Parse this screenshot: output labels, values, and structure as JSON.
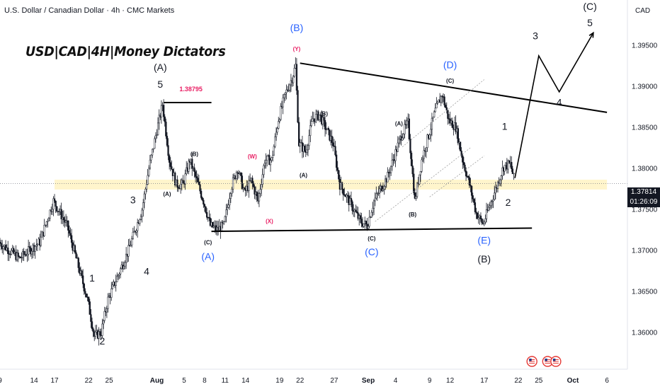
{
  "header": {
    "symbol_line": "U.S. Dollar / Canadian Dollar · 4h · CMC Markets",
    "currency": "CAD",
    "brand": "USD|CAD|4H|Money Dictators"
  },
  "price_box": {
    "price": "1.37814",
    "countdown": "01:26:09"
  },
  "colors": {
    "up_candle": "#131722",
    "down_candle": "#131722",
    "blue_label": "#2962ff",
    "red_label": "#e91e63",
    "zone": "#fff5cc",
    "trend_line": "#000000"
  },
  "chart_data": {
    "type": "candlestick",
    "y_axis": {
      "ticks": [
        "1.39500",
        "1.39000",
        "1.38500",
        "1.38000",
        "1.37500",
        "1.37000",
        "1.36500",
        "1.36000"
      ],
      "tick_values": [
        1.395,
        1.39,
        1.385,
        1.38,
        1.375,
        1.37,
        1.365,
        1.36
      ],
      "ylim": [
        1.3555,
        1.4005
      ]
    },
    "x_axis": {
      "ticks": [
        "9",
        "14",
        "17",
        "22",
        "25",
        "Aug",
        "5",
        "8",
        "11",
        "14",
        "19",
        "22",
        "27",
        "Sep",
        "4",
        "9",
        "12",
        "17",
        "22",
        "25",
        "Oct",
        "6"
      ],
      "tick_day": [
        9,
        14,
        17,
        22,
        25,
        32,
        36,
        39,
        42,
        45,
        50,
        53,
        58,
        63,
        67,
        72,
        75,
        80,
        85,
        88,
        93,
        98
      ],
      "range_day": [
        9,
        101
      ]
    },
    "path": [
      [
        9,
        1.371
      ],
      [
        12,
        1.369
      ],
      [
        15,
        1.371
      ],
      [
        17,
        1.376
      ],
      [
        19,
        1.373
      ],
      [
        21,
        1.367
      ],
      [
        22,
        1.364
      ],
      [
        23,
        1.3595
      ],
      [
        24,
        1.36
      ],
      [
        25,
        1.364
      ],
      [
        26,
        1.366
      ],
      [
        28,
        1.37
      ],
      [
        30,
        1.375
      ],
      [
        31,
        1.38
      ],
      [
        32,
        1.384
      ],
      [
        33,
        1.3878
      ],
      [
        34,
        1.381
      ],
      [
        35,
        1.378
      ],
      [
        36,
        1.378
      ],
      [
        37,
        1.381
      ],
      [
        39,
        1.376
      ],
      [
        40,
        1.373
      ],
      [
        41,
        1.3725
      ],
      [
        42,
        1.373
      ],
      [
        43,
        1.3775
      ],
      [
        44,
        1.38
      ],
      [
        45,
        1.377
      ],
      [
        46,
        1.3785
      ],
      [
        47,
        1.376
      ],
      [
        48,
        1.381
      ],
      [
        49,
        1.381
      ],
      [
        50,
        1.386
      ],
      [
        51,
        1.389
      ],
      [
        52,
        1.391
      ],
      [
        52.5,
        1.3925
      ],
      [
        53,
        1.383
      ],
      [
        54,
        1.382
      ],
      [
        55,
        1.386
      ],
      [
        56,
        1.3865
      ],
      [
        58,
        1.383
      ],
      [
        59,
        1.378
      ],
      [
        61,
        1.375
      ],
      [
        62,
        1.3735
      ],
      [
        63,
        1.373
      ],
      [
        64,
        1.376
      ],
      [
        66,
        1.379
      ],
      [
        68,
        1.384
      ],
      [
        69,
        1.3855
      ],
      [
        70,
        1.376
      ],
      [
        71,
        1.381
      ],
      [
        72,
        1.384
      ],
      [
        73,
        1.387
      ],
      [
        74,
        1.389
      ],
      [
        75,
        1.3858
      ],
      [
        76,
        1.385
      ],
      [
        77,
        1.381
      ],
      [
        78,
        1.378
      ],
      [
        79,
        1.3745
      ],
      [
        80,
        1.3732
      ],
      [
        81,
        1.3755
      ],
      [
        82,
        1.3778
      ],
      [
        83,
        1.3802
      ],
      [
        84,
        1.3805
      ],
      [
        84.5,
        1.3788
      ]
    ],
    "current_price": 1.37814,
    "support_zone": [
      1.3774,
      1.3786
    ],
    "trend_lines": [
      {
        "from": [
          53,
          1.3928
        ],
        "to": [
          98,
          1.3868
        ]
      },
      {
        "from": [
          40,
          1.3723
        ],
        "to": [
          87,
          1.3727
        ]
      },
      {
        "from": [
          33,
          1.388
        ],
        "to": [
          40,
          1.388
        ]
      }
    ],
    "channel_lines": [
      {
        "from": [
          64,
          1.3735
        ],
        "to": [
          78,
          1.3825
        ]
      },
      {
        "from": [
          68,
          1.3826
        ],
        "to": [
          80,
          1.3908
        ]
      },
      {
        "from": [
          72,
          1.3765
        ],
        "to": [
          80,
          1.3815
        ]
      }
    ],
    "projection": [
      [
        84.5,
        1.3788
      ],
      [
        88,
        1.3937
      ],
      [
        91,
        1.3893
      ],
      [
        96,
        1.3965
      ]
    ],
    "labels": [
      {
        "text": "1",
        "x": 22.5,
        "y": 1.3662,
        "color": "black",
        "size": 14
      },
      {
        "text": "2",
        "x": 24,
        "y": 1.3585,
        "color": "black",
        "size": 14
      },
      {
        "text": "3",
        "x": 28.5,
        "y": 1.3757,
        "color": "black",
        "size": 14
      },
      {
        "text": "4",
        "x": 30.5,
        "y": 1.367,
        "color": "black",
        "size": 14
      },
      {
        "text": "5",
        "x": 32.5,
        "y": 1.3898,
        "color": "black",
        "size": 14
      },
      {
        "text": "(A)",
        "x": 32.5,
        "y": 1.3919,
        "color": "black",
        "size": 14
      },
      {
        "text": "1.38795",
        "x": 37,
        "y": 1.3894,
        "color": "red",
        "size": 9
      },
      {
        "text": "(B)",
        "x": 37.5,
        "y": 1.3815,
        "color": "black",
        "size": 8
      },
      {
        "text": "(A)",
        "x": 33.5,
        "y": 1.3766,
        "color": "black",
        "size": 8
      },
      {
        "text": "(C)",
        "x": 39.5,
        "y": 1.3707,
        "color": "black",
        "size": 8
      },
      {
        "text": "(A)",
        "x": 39.5,
        "y": 1.3688,
        "color": "blue",
        "size": 14
      },
      {
        "text": "(W)",
        "x": 46,
        "y": 1.3812,
        "color": "red",
        "size": 8
      },
      {
        "text": "(X)",
        "x": 48.5,
        "y": 1.3733,
        "color": "red",
        "size": 8
      },
      {
        "text": "(Y)",
        "x": 52.5,
        "y": 1.3943,
        "color": "red",
        "size": 8
      },
      {
        "text": "(B)",
        "x": 52.5,
        "y": 1.3967,
        "color": "blue",
        "size": 14
      },
      {
        "text": "(B)",
        "x": 56.5,
        "y": 1.3864,
        "color": "black",
        "size": 8
      },
      {
        "text": "(A)",
        "x": 53.5,
        "y": 1.3789,
        "color": "black",
        "size": 8
      },
      {
        "text": "(C)",
        "x": 63.5,
        "y": 1.3712,
        "color": "black",
        "size": 8
      },
      {
        "text": "(C)",
        "x": 63.5,
        "y": 1.3694,
        "color": "blue",
        "size": 14
      },
      {
        "text": "(A)",
        "x": 67.5,
        "y": 1.3852,
        "color": "black",
        "size": 8
      },
      {
        "text": "(B)",
        "x": 69.5,
        "y": 1.3741,
        "color": "black",
        "size": 8
      },
      {
        "text": "(C)",
        "x": 75,
        "y": 1.3904,
        "color": "black",
        "size": 8
      },
      {
        "text": "(D)",
        "x": 75,
        "y": 1.3922,
        "color": "blue",
        "size": 14
      },
      {
        "text": "1",
        "x": 83,
        "y": 1.3847,
        "color": "black",
        "size": 14
      },
      {
        "text": "2",
        "x": 83.5,
        "y": 1.3754,
        "color": "black",
        "size": 14
      },
      {
        "text": "(E)",
        "x": 80,
        "y": 1.3708,
        "color": "blue",
        "size": 14
      },
      {
        "text": "(B)",
        "x": 80,
        "y": 1.3685,
        "color": "black",
        "size": 14
      },
      {
        "text": "3",
        "x": 87.5,
        "y": 1.3957,
        "color": "black",
        "size": 14
      },
      {
        "text": "4",
        "x": 91,
        "y": 1.3876,
        "color": "black",
        "size": 14
      },
      {
        "text": "(C)",
        "x": 95.5,
        "y": 1.3993,
        "color": "black",
        "size": 14
      },
      {
        "text": "5",
        "x": 95.5,
        "y": 1.3973,
        "color": "black",
        "size": 14
      }
    ],
    "event_icons_day": [
      87,
      89.3,
      90.5
    ],
    "grid": false,
    "legend": "none"
  }
}
